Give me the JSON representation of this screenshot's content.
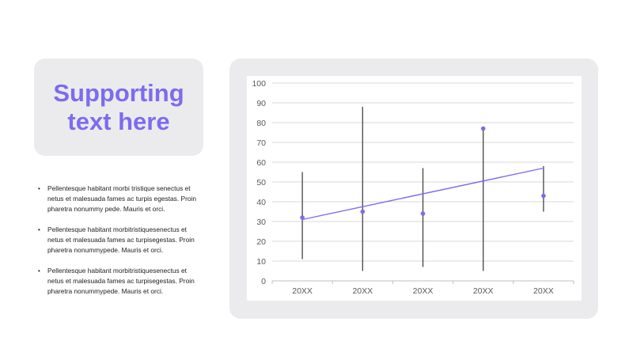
{
  "title": "Supporting text here",
  "bullets": [
    "Pellentesque habitant morbi tristique senectus et netus et malesuada fames ac turpis egestas. Proin pharetra nonummy  pede. Mauris et orci.",
    "Pellentesque habitant morbitristiquesenectus et netus et malesuada fames ac turpisegestas. Proin pharetra nonummypede.  Mauris et orci.",
    "Pellentesque habitant morbitristiquesenectus et netus et malesuada fames ac turpisegestas. Proin pharetra nonummypede.  Mauris et orci."
  ],
  "colors": {
    "accent": "#7d6bef",
    "panel": "#ebebed",
    "whisker": "#444444",
    "grid": "#d9d9d9"
  },
  "chart_data": {
    "type": "scatter",
    "categories": [
      "20XX",
      "20XX",
      "20XX",
      "20XX",
      "20XX"
    ],
    "values": [
      32,
      35,
      34,
      77,
      43
    ],
    "error_low": [
      11,
      5,
      7,
      5,
      35
    ],
    "error_high": [
      55,
      88,
      57,
      77,
      58
    ],
    "trendline": [
      31,
      57
    ],
    "ylim": [
      0,
      100
    ],
    "yticks": [
      0,
      10,
      20,
      30,
      40,
      50,
      60,
      70,
      80,
      90,
      100
    ],
    "grid": true,
    "legend": "none"
  }
}
